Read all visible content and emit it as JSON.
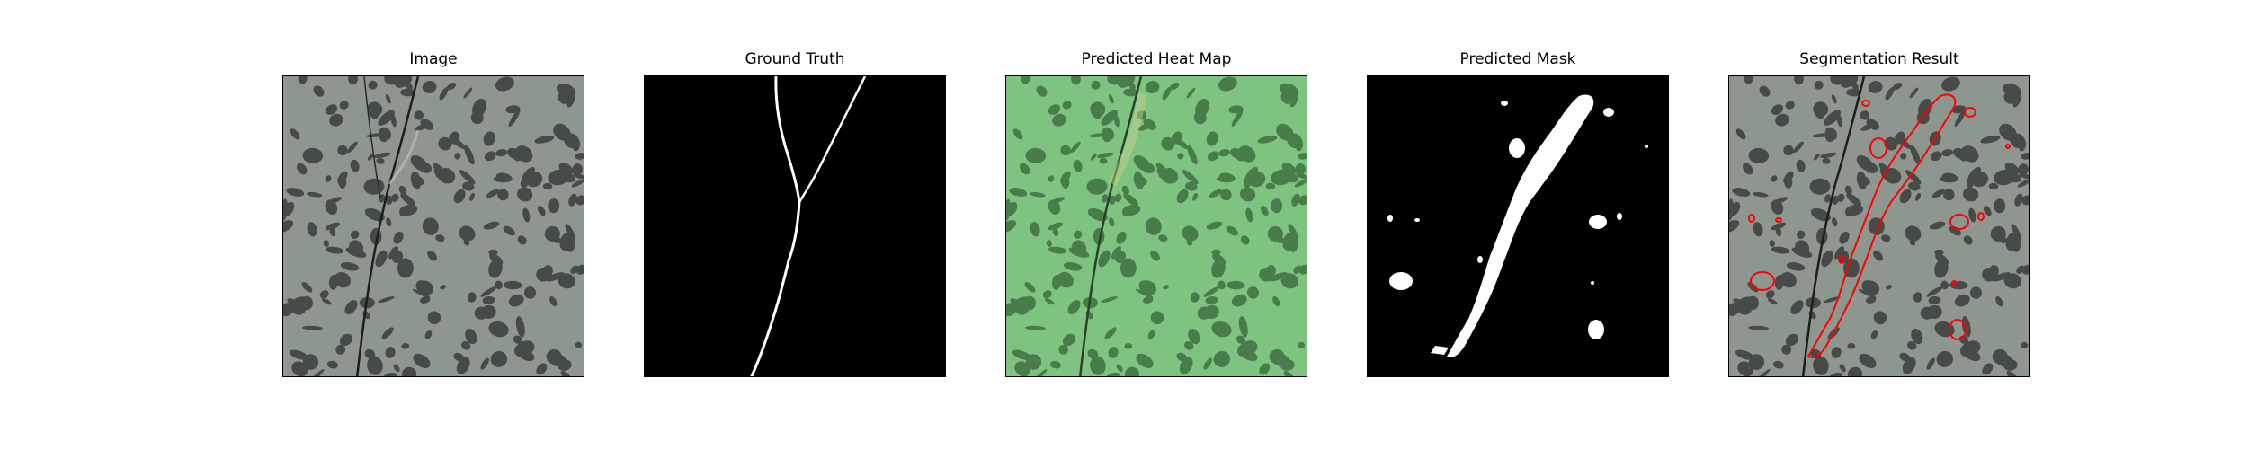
{
  "figure": {
    "panels": [
      {
        "title": "Image"
      },
      {
        "title": "Ground Truth"
      },
      {
        "title": "Predicted Heat Map"
      },
      {
        "title": "Predicted Mask"
      },
      {
        "title": "Segmentation Result"
      }
    ]
  },
  "colors": {
    "background": "#ffffff",
    "rock_base": "#8d968f",
    "rock_spots": "#3a3d3b",
    "heatmap_tint": "#7fd083",
    "mask_foreground": "#ffffff",
    "mask_background": "#000000",
    "contour": "#ff0000"
  }
}
